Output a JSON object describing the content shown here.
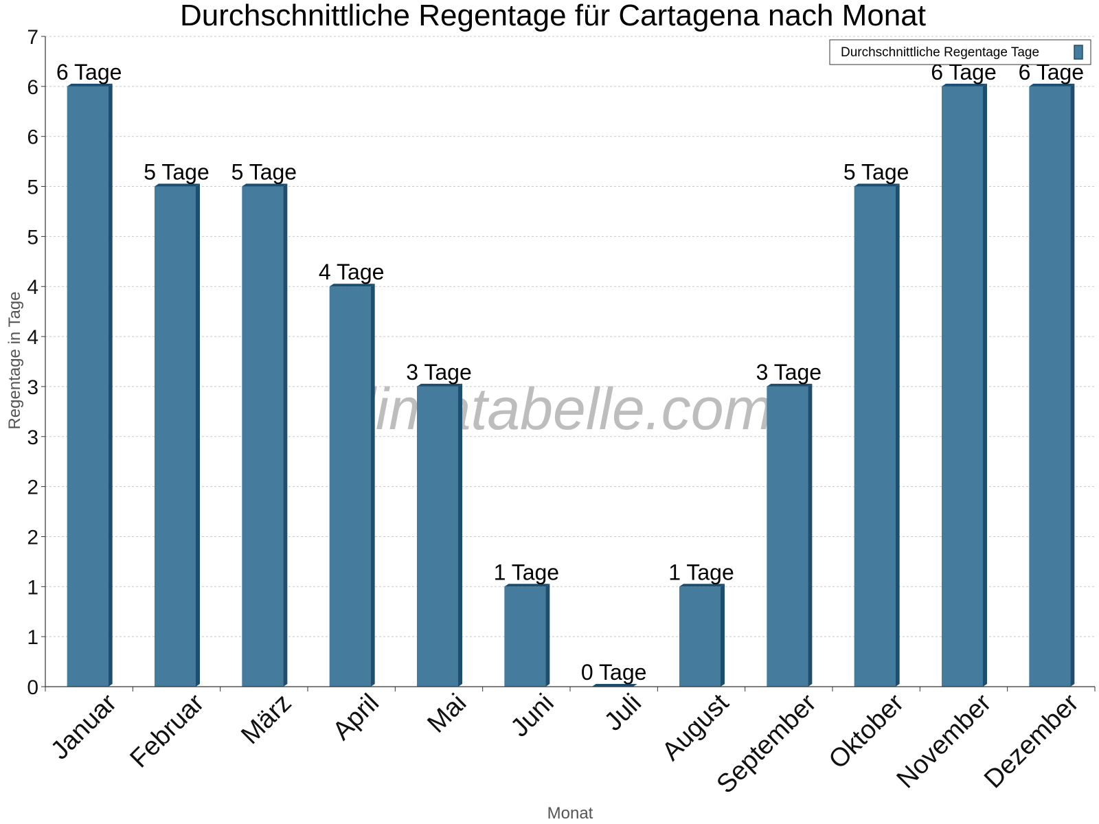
{
  "chart_data": {
    "type": "bar",
    "title": "Durchschnittliche Regentage für Cartagena nach Monat",
    "xlabel": "Monat",
    "ylabel": "Regentage in Tage",
    "categories": [
      "Januar",
      "Februar",
      "März",
      "April",
      "Mai",
      "Juni",
      "Juli",
      "August",
      "September",
      "Oktober",
      "November",
      "Dezember"
    ],
    "series": [
      {
        "name": "Durchschnittliche Regentage Tage",
        "values": [
          6,
          5,
          5,
          4,
          3,
          1,
          0,
          1,
          3,
          5,
          6,
          6
        ],
        "data_labels": [
          "6 Tage",
          "5 Tage",
          "5 Tage",
          "4 Tage",
          "3 Tage",
          "1 Tage",
          "0 Tage",
          "1 Tage",
          "3 Tage",
          "5 Tage",
          "6 Tage",
          "6 Tage"
        ]
      }
    ],
    "ylim": [
      0,
      6.5
    ],
    "yticks": [
      0,
      0.5,
      1,
      1.5,
      2,
      2.5,
      3,
      3.5,
      4,
      4.5,
      5,
      5.5,
      6,
      6.5
    ],
    "ytick_labels": [
      "0",
      "1",
      "1",
      "2",
      "2",
      "3",
      "3",
      "4",
      "4",
      "5",
      "5",
      "6",
      "6",
      "7"
    ],
    "grid": true,
    "legend_position": "top-right",
    "bar_color": "#457b9d",
    "bar_side_color": "#1d4e6f",
    "watermark": "klimatabelle.com"
  }
}
